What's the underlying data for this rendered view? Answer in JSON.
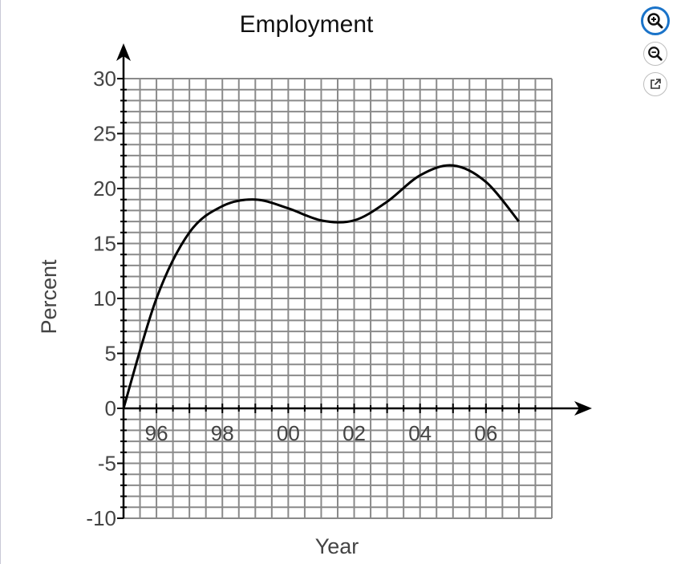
{
  "chart_data": {
    "type": "line",
    "title": "Employment",
    "xlabel": "Year",
    "ylabel": "Percent",
    "x_tick_labels": [
      "96",
      "98",
      "00",
      "02",
      "04",
      "06"
    ],
    "y_tick_labels": [
      "30",
      "25",
      "20",
      "15",
      "10",
      "5",
      "0",
      "-5",
      "-10"
    ],
    "y_ticks": [
      30,
      25,
      20,
      15,
      10,
      5,
      0,
      -5,
      -10
    ],
    "xlim": [
      1995,
      2008
    ],
    "ylim": [
      -10,
      30
    ],
    "grid": true,
    "series": [
      {
        "x": [
          1995,
          1996,
          1997,
          1998,
          1999,
          2000,
          2001,
          2002,
          2003,
          2004,
          2005,
          2006,
          2007
        ],
        "y": [
          0,
          10,
          16,
          18.4,
          19,
          18.2,
          17.1,
          17.1,
          18.8,
          21.2,
          22.1,
          20.6,
          17
        ]
      }
    ]
  },
  "toolbar": {
    "zoom_in": "zoom-in-icon",
    "zoom_out": "zoom-out-icon",
    "popout": "external-link-icon",
    "accent": "#1a73c9"
  }
}
